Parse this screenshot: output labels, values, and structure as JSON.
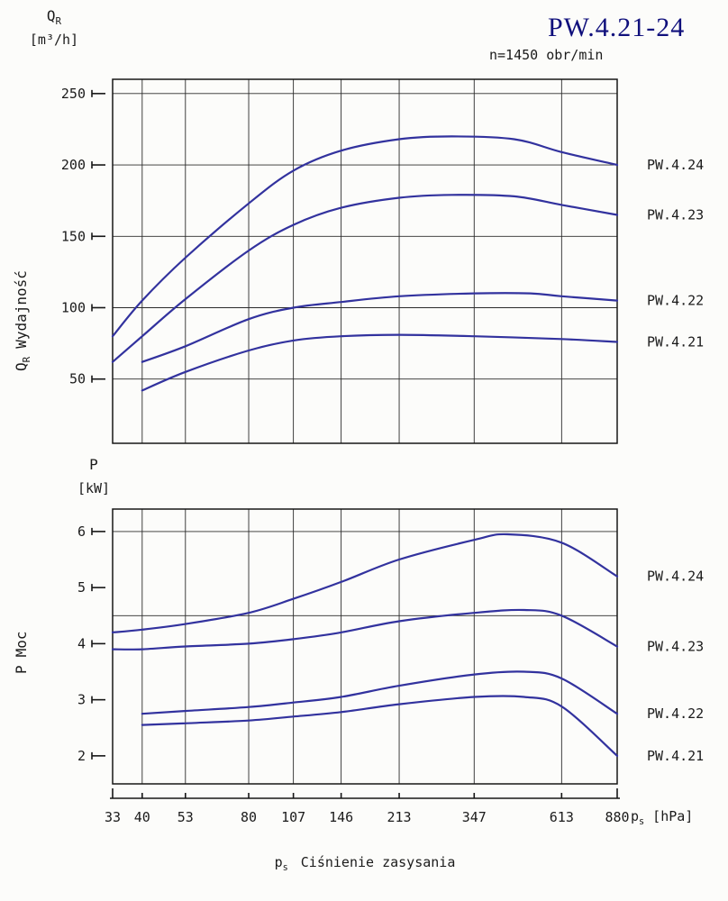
{
  "header": {
    "title": "PW.4.21-24",
    "subtitle": "n=1450 obr/min"
  },
  "labels": {
    "qr_unit": {
      "base": "Q",
      "sub": "R",
      "unit": "[m³/h]"
    },
    "qr_rot": {
      "base": "Q",
      "sub": "R",
      "text": "Wydajność"
    },
    "p_unit": {
      "base": "P",
      "sub": "",
      "unit": "[kW]"
    },
    "p_rot": {
      "base": "P",
      "sub": "",
      "text": "Moc"
    },
    "x_unit": {
      "base": "p",
      "sub": "s",
      "unit": "[hPa]"
    },
    "x_title": {
      "base": "p",
      "sub": "s",
      "text": "Ciśnienie zasysania"
    }
  },
  "chart_data": [
    {
      "type": "line",
      "title": "PW.4.21-24  n=1450 obr/min",
      "ylabel": "Q_R Wydajność [m³/h]",
      "xlabel": "p_s [hPa]",
      "x_scale": "log",
      "xlim": [
        33,
        880
      ],
      "x_ticks": [
        33,
        40,
        53,
        80,
        107,
        146,
        213,
        347,
        613,
        880
      ],
      "ylim": [
        5,
        260
      ],
      "y_ticks": [
        250,
        200,
        150,
        100,
        50
      ],
      "y_gridlines": [
        50,
        100,
        150,
        200,
        250
      ],
      "grid": "full",
      "legend_position": "right-outside",
      "series": [
        {
          "name": "PW.4.24",
          "points": [
            [
              33,
              80
            ],
            [
              40,
              105
            ],
            [
              53,
              135
            ],
            [
              80,
              173
            ],
            [
              107,
              196
            ],
            [
              146,
              210
            ],
            [
              213,
              218
            ],
            [
              300,
              220
            ],
            [
              450,
              218
            ],
            [
              613,
              209
            ],
            [
              880,
              200
            ]
          ]
        },
        {
          "name": "PW.4.23",
          "points": [
            [
              33,
              62
            ],
            [
              40,
              80
            ],
            [
              53,
              106
            ],
            [
              80,
              140
            ],
            [
              107,
              158
            ],
            [
              146,
              170
            ],
            [
              213,
              177
            ],
            [
              300,
              179
            ],
            [
              450,
              178
            ],
            [
              613,
              172
            ],
            [
              880,
              165
            ]
          ]
        },
        {
          "name": "PW.4.22",
          "points": [
            [
              40,
              62
            ],
            [
              53,
              73
            ],
            [
              80,
              92
            ],
            [
              107,
              100
            ],
            [
              146,
              104
            ],
            [
              213,
              108
            ],
            [
              347,
              110
            ],
            [
              500,
              110
            ],
            [
              613,
              108
            ],
            [
              880,
              105
            ]
          ]
        },
        {
          "name": "PW.4.21",
          "points": [
            [
              40,
              42
            ],
            [
              53,
              55
            ],
            [
              80,
              70
            ],
            [
              107,
              77
            ],
            [
              146,
              80
            ],
            [
              213,
              81
            ],
            [
              347,
              80
            ],
            [
              613,
              78
            ],
            [
              880,
              76
            ]
          ]
        }
      ]
    },
    {
      "type": "line",
      "title": "",
      "ylabel": "P Moc [kW]",
      "xlabel": "p_s [hPa]",
      "x_scale": "log",
      "xlim": [
        33,
        880
      ],
      "x_ticks": [
        33,
        40,
        53,
        80,
        107,
        146,
        213,
        347,
        613,
        880
      ],
      "ylim": [
        1.5,
        6.4
      ],
      "y_ticks": [
        6,
        5,
        4,
        3,
        2
      ],
      "y_gridlines": [
        6,
        4.5
      ],
      "grid": "vertical+partial-horizontal",
      "legend_position": "right-outside",
      "series": [
        {
          "name": "PW.4.24",
          "points": [
            [
              33,
              4.2
            ],
            [
              40,
              4.25
            ],
            [
              53,
              4.35
            ],
            [
              80,
              4.55
            ],
            [
              107,
              4.8
            ],
            [
              146,
              5.1
            ],
            [
              213,
              5.5
            ],
            [
              347,
              5.85
            ],
            [
              430,
              5.95
            ],
            [
              613,
              5.8
            ],
            [
              880,
              5.2
            ]
          ]
        },
        {
          "name": "PW.4.23",
          "points": [
            [
              33,
              3.9
            ],
            [
              40,
              3.9
            ],
            [
              53,
              3.95
            ],
            [
              80,
              4.0
            ],
            [
              107,
              4.08
            ],
            [
              146,
              4.2
            ],
            [
              213,
              4.4
            ],
            [
              347,
              4.55
            ],
            [
              480,
              4.6
            ],
            [
              613,
              4.5
            ],
            [
              880,
              3.95
            ]
          ]
        },
        {
          "name": "PW.4.22",
          "points": [
            [
              40,
              2.75
            ],
            [
              53,
              2.8
            ],
            [
              80,
              2.87
            ],
            [
              107,
              2.95
            ],
            [
              146,
              3.05
            ],
            [
              213,
              3.25
            ],
            [
              347,
              3.45
            ],
            [
              480,
              3.5
            ],
            [
              613,
              3.38
            ],
            [
              880,
              2.75
            ]
          ]
        },
        {
          "name": "PW.4.21",
          "points": [
            [
              40,
              2.55
            ],
            [
              53,
              2.58
            ],
            [
              80,
              2.63
            ],
            [
              107,
              2.7
            ],
            [
              146,
              2.78
            ],
            [
              213,
              2.92
            ],
            [
              347,
              3.05
            ],
            [
              480,
              3.05
            ],
            [
              613,
              2.88
            ],
            [
              880,
              2.0
            ]
          ]
        }
      ]
    }
  ]
}
